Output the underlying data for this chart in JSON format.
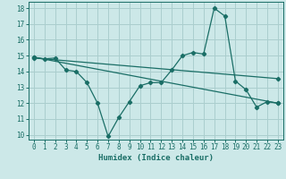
{
  "title": "",
  "xlabel": "Humidex (Indice chaleur)",
  "ylabel": "",
  "xlim": [
    -0.5,
    23.5
  ],
  "ylim": [
    9.7,
    18.4
  ],
  "xticks": [
    0,
    1,
    2,
    3,
    4,
    5,
    6,
    7,
    8,
    9,
    10,
    11,
    12,
    13,
    14,
    15,
    16,
    17,
    18,
    19,
    20,
    21,
    22,
    23
  ],
  "yticks": [
    10,
    11,
    12,
    13,
    14,
    15,
    16,
    17,
    18
  ],
  "bg_color": "#cce8e8",
  "grid_color": "#aacece",
  "line_color": "#1a6e66",
  "line1_x": [
    0,
    1,
    2,
    3,
    4,
    5,
    6,
    7,
    8,
    9,
    10,
    11,
    12,
    13,
    14,
    15,
    16,
    17,
    18,
    19,
    20,
    21,
    22,
    23
  ],
  "line1_y": [
    14.9,
    14.8,
    14.85,
    14.1,
    14.0,
    13.3,
    12.0,
    9.9,
    11.1,
    12.1,
    13.1,
    13.3,
    13.3,
    14.1,
    15.0,
    15.2,
    15.1,
    18.0,
    17.5,
    13.4,
    12.85,
    11.75,
    12.1,
    12.0
  ],
  "line2_x": [
    0,
    23
  ],
  "line2_y": [
    14.9,
    12.0
  ],
  "line3_x": [
    0,
    23
  ],
  "line3_y": [
    14.85,
    13.55
  ],
  "marker_size": 2.2,
  "line_width": 0.9,
  "tick_fontsize": 5.5,
  "xlabel_fontsize": 6.5
}
